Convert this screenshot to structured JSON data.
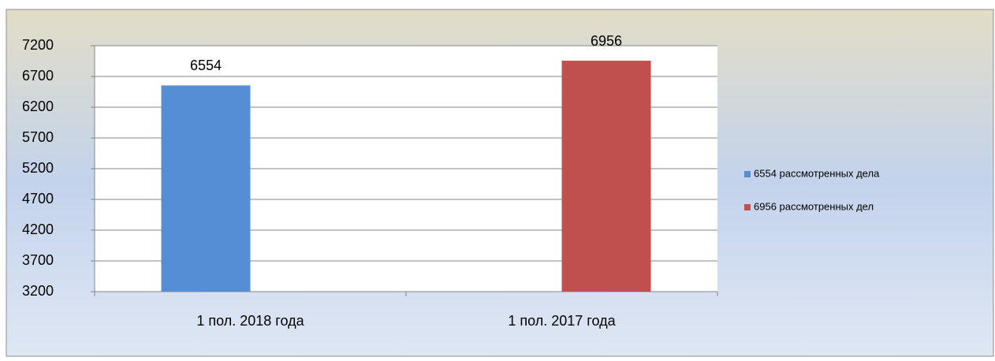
{
  "chart_data": {
    "type": "bar",
    "categories": [
      "1 пол. 2018 года",
      "1 пол. 2017 года"
    ],
    "series": [
      {
        "name": "6554 рассмотренных дела",
        "color": "#558ed5",
        "values": [
          6554,
          null
        ]
      },
      {
        "name": "6956 рассмотренных дел",
        "color": "#c0504d",
        "values": [
          null,
          6956
        ]
      }
    ],
    "ylim": [
      3200,
      7200
    ],
    "yticks": [
      3200,
      3700,
      4200,
      4700,
      5200,
      5700,
      6200,
      6700,
      7200
    ],
    "grid": true,
    "legend": "right"
  }
}
